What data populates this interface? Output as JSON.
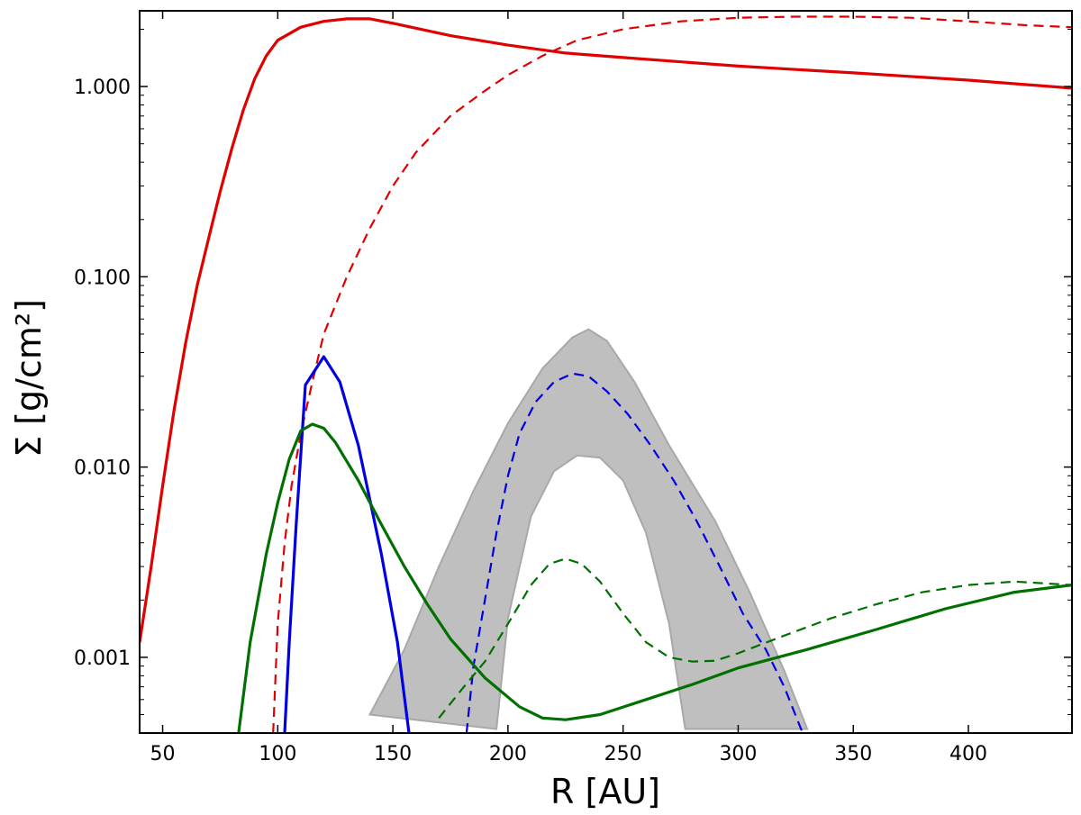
{
  "chart_data": {
    "type": "line",
    "title": "",
    "xlabel": "R [AU]",
    "ylabel": "Σ [g/cm²]",
    "xlim": [
      40,
      445
    ],
    "ylim": [
      0.0004,
      2.5
    ],
    "yscale": "log",
    "grid": false,
    "legend": "none",
    "x_ticks": [
      50,
      100,
      150,
      200,
      250,
      300,
      350,
      400
    ],
    "x_tick_labels": [
      "50",
      "100",
      "150",
      "200",
      "250",
      "300",
      "350",
      "400"
    ],
    "y_ticks": [
      0.001,
      0.01,
      0.1,
      1.0
    ],
    "y_tick_labels": [
      "0.001",
      "0.010",
      "0.100",
      "1.000"
    ],
    "band": {
      "color": "#bfbfbf",
      "edge_color": "#a8a8a8",
      "upper": [
        [
          140,
          0.0005
        ],
        [
          155,
          0.0011
        ],
        [
          170,
          0.003
        ],
        [
          185,
          0.0075
        ],
        [
          200,
          0.017
        ],
        [
          215,
          0.033
        ],
        [
          228,
          0.048
        ],
        [
          235,
          0.053
        ],
        [
          243,
          0.046
        ],
        [
          255,
          0.028
        ],
        [
          270,
          0.013
        ],
        [
          290,
          0.0052
        ],
        [
          305,
          0.0022
        ],
        [
          320,
          0.00085
        ],
        [
          330,
          0.00042
        ]
      ],
      "lower": [
        [
          195,
          0.00042
        ],
        [
          200,
          0.0016
        ],
        [
          210,
          0.0055
        ],
        [
          220,
          0.0095
        ],
        [
          230,
          0.0115
        ],
        [
          240,
          0.0112
        ],
        [
          250,
          0.0085
        ],
        [
          260,
          0.0045
        ],
        [
          270,
          0.0015
        ],
        [
          275,
          0.0006
        ],
        [
          277,
          0.00042
        ]
      ]
    },
    "series": [
      {
        "color": "#e00000",
        "style": "solid",
        "points": [
          [
            40,
            0.0012
          ],
          [
            45,
            0.003
          ],
          [
            50,
            0.008
          ],
          [
            55,
            0.02
          ],
          [
            60,
            0.045
          ],
          [
            65,
            0.09
          ],
          [
            70,
            0.16
          ],
          [
            75,
            0.28
          ],
          [
            80,
            0.47
          ],
          [
            85,
            0.75
          ],
          [
            90,
            1.1
          ],
          [
            95,
            1.45
          ],
          [
            100,
            1.75
          ],
          [
            110,
            2.05
          ],
          [
            120,
            2.2
          ],
          [
            130,
            2.27
          ],
          [
            140,
            2.27
          ],
          [
            150,
            2.15
          ],
          [
            175,
            1.85
          ],
          [
            200,
            1.65
          ],
          [
            225,
            1.5
          ],
          [
            250,
            1.42
          ],
          [
            300,
            1.28
          ],
          [
            350,
            1.18
          ],
          [
            400,
            1.08
          ],
          [
            445,
            0.98
          ]
        ]
      },
      {
        "color": "#e00000",
        "style": "dashed",
        "points": [
          [
            98,
            0.0004
          ],
          [
            100,
            0.0015
          ],
          [
            103,
            0.004
          ],
          [
            106,
            0.008
          ],
          [
            110,
            0.015
          ],
          [
            115,
            0.028
          ],
          [
            120,
            0.05
          ],
          [
            130,
            0.1
          ],
          [
            140,
            0.18
          ],
          [
            150,
            0.3
          ],
          [
            160,
            0.45
          ],
          [
            175,
            0.7
          ],
          [
            190,
            0.95
          ],
          [
            200,
            1.15
          ],
          [
            215,
            1.45
          ],
          [
            230,
            1.75
          ],
          [
            250,
            2.0
          ],
          [
            275,
            2.2
          ],
          [
            300,
            2.3
          ],
          [
            325,
            2.33
          ],
          [
            350,
            2.33
          ],
          [
            375,
            2.3
          ],
          [
            400,
            2.2
          ],
          [
            425,
            2.1
          ],
          [
            445,
            2.05
          ]
        ]
      },
      {
        "color": "#0000e0",
        "style": "solid",
        "points": [
          [
            103,
            0.0004
          ],
          [
            105,
            0.0012
          ],
          [
            108,
            0.005
          ],
          [
            112,
            0.027
          ],
          [
            120,
            0.038
          ],
          [
            127,
            0.028
          ],
          [
            135,
            0.013
          ],
          [
            145,
            0.0035
          ],
          [
            152,
            0.0012
          ],
          [
            157,
            0.0004
          ]
        ]
      },
      {
        "color": "#0000e0",
        "style": "dashed",
        "points": [
          [
            182,
            0.0004
          ],
          [
            185,
            0.0009
          ],
          [
            190,
            0.002
          ],
          [
            195,
            0.0045
          ],
          [
            200,
            0.009
          ],
          [
            205,
            0.015
          ],
          [
            212,
            0.022
          ],
          [
            220,
            0.028
          ],
          [
            228,
            0.031
          ],
          [
            235,
            0.03
          ],
          [
            243,
            0.025
          ],
          [
            252,
            0.019
          ],
          [
            262,
            0.013
          ],
          [
            272,
            0.0085
          ],
          [
            282,
            0.0052
          ],
          [
            292,
            0.003
          ],
          [
            302,
            0.0017
          ],
          [
            312,
            0.0011
          ],
          [
            320,
            0.0007
          ],
          [
            328,
            0.0004
          ]
        ]
      },
      {
        "color": "#007000",
        "style": "solid",
        "points": [
          [
            83,
            0.0004
          ],
          [
            88,
            0.0012
          ],
          [
            95,
            0.0035
          ],
          [
            100,
            0.0065
          ],
          [
            105,
            0.011
          ],
          [
            110,
            0.0155
          ],
          [
            115,
            0.0168
          ],
          [
            120,
            0.016
          ],
          [
            125,
            0.0135
          ],
          [
            135,
            0.0085
          ],
          [
            145,
            0.005
          ],
          [
            155,
            0.003
          ],
          [
            165,
            0.0019
          ],
          [
            175,
            0.00125
          ],
          [
            190,
            0.00078
          ],
          [
            205,
            0.00055
          ],
          [
            215,
            0.00048
          ],
          [
            225,
            0.00047
          ],
          [
            240,
            0.0005
          ],
          [
            260,
            0.0006
          ],
          [
            280,
            0.00072
          ],
          [
            300,
            0.00088
          ],
          [
            330,
            0.0011
          ],
          [
            360,
            0.0014
          ],
          [
            390,
            0.0018
          ],
          [
            420,
            0.0022
          ],
          [
            445,
            0.0024
          ]
        ]
      },
      {
        "color": "#007000",
        "style": "dashed",
        "points": [
          [
            170,
            0.00048
          ],
          [
            180,
            0.00068
          ],
          [
            190,
            0.00095
          ],
          [
            200,
            0.0015
          ],
          [
            210,
            0.0024
          ],
          [
            218,
            0.0031
          ],
          [
            225,
            0.0033
          ],
          [
            232,
            0.0031
          ],
          [
            240,
            0.0025
          ],
          [
            250,
            0.0017
          ],
          [
            260,
            0.0012
          ],
          [
            270,
            0.001
          ],
          [
            280,
            0.00095
          ],
          [
            290,
            0.00096
          ],
          [
            300,
            0.00105
          ],
          [
            320,
            0.0013
          ],
          [
            340,
            0.0016
          ],
          [
            360,
            0.0019
          ],
          [
            380,
            0.0022
          ],
          [
            400,
            0.0024
          ],
          [
            420,
            0.0025
          ],
          [
            445,
            0.0024
          ]
        ]
      }
    ]
  }
}
